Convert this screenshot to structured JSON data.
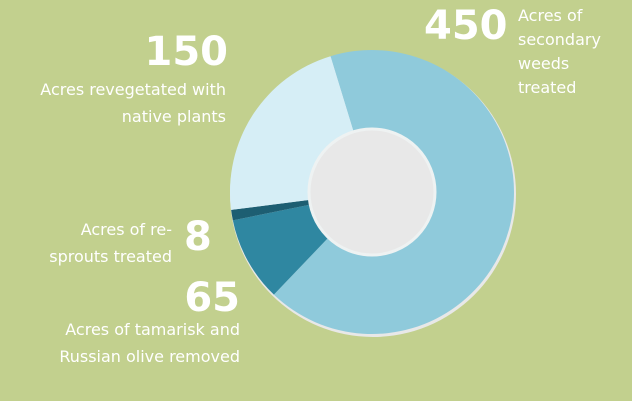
{
  "chart_data": {
    "type": "donut",
    "categories": [
      "Acres of secondary weeds treated",
      "Acres of tamarisk and Russian olive removed",
      "Acres of re-sprouts treated",
      "Acres revegetated with native plants"
    ],
    "values": [
      450,
      65,
      8,
      150
    ],
    "colors": [
      "#8fcadb",
      "#2f87a1",
      "#1d5e72",
      "#d6eef6"
    ]
  }
}
